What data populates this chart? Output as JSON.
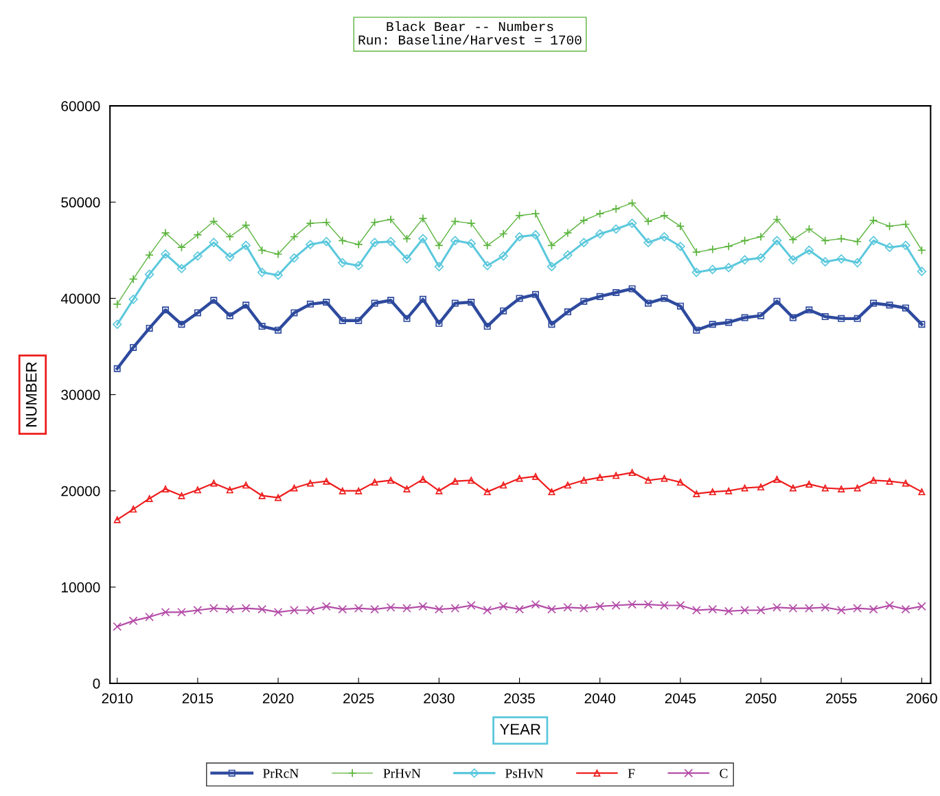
{
  "chart_data": {
    "type": "line",
    "title": "Black Bear -- Numbers",
    "subtitle": "Run: Baseline/Harvest = 1700",
    "xlabel": "YEAR",
    "ylabel": "NUMBER",
    "x": [
      2010,
      2011,
      2012,
      2013,
      2014,
      2015,
      2016,
      2017,
      2018,
      2019,
      2020,
      2021,
      2022,
      2023,
      2024,
      2025,
      2026,
      2027,
      2028,
      2029,
      2030,
      2031,
      2032,
      2033,
      2034,
      2035,
      2036,
      2037,
      2038,
      2039,
      2040,
      2041,
      2042,
      2043,
      2044,
      2045,
      2046,
      2047,
      2048,
      2049,
      2050,
      2051,
      2052,
      2053,
      2054,
      2055,
      2056,
      2057,
      2058,
      2059,
      2060
    ],
    "series": [
      {
        "name": "PrRcN",
        "color": "#2e4a9e",
        "marker": "square",
        "values": [
          32700,
          34900,
          36900,
          38800,
          37300,
          38500,
          39800,
          38200,
          39300,
          37100,
          36700,
          38500,
          39400,
          39600,
          37700,
          37700,
          39500,
          39800,
          37900,
          39900,
          37400,
          39500,
          39600,
          37100,
          38700,
          40000,
          40400,
          37300,
          38600,
          39700,
          40200,
          40600,
          41000,
          39500,
          40000,
          39200,
          36700,
          37300,
          37500,
          38000,
          38200,
          39700,
          38000,
          38800,
          38100,
          37900,
          37900,
          39500,
          39300,
          39000,
          37300
        ]
      },
      {
        "name": "PrHvN",
        "color": "#5ab43c",
        "marker": "plus",
        "values": [
          39400,
          42000,
          44500,
          46800,
          45300,
          46600,
          48000,
          46400,
          47600,
          45000,
          44600,
          46400,
          47800,
          47900,
          46000,
          45600,
          47900,
          48200,
          46200,
          48300,
          45500,
          48000,
          47800,
          45500,
          46700,
          48600,
          48800,
          45500,
          46800,
          48100,
          48800,
          49300,
          49900,
          48000,
          48600,
          47500,
          44800,
          45100,
          45400,
          46000,
          46400,
          48200,
          46100,
          47200,
          46000,
          46200,
          45900,
          48100,
          47500,
          47700,
          45000
        ]
      },
      {
        "name": "PsHvN",
        "color": "#5bc8dc",
        "marker": "diamond",
        "values": [
          37300,
          39900,
          42500,
          44600,
          43100,
          44400,
          45800,
          44300,
          45500,
          42700,
          42400,
          44200,
          45600,
          45900,
          43700,
          43400,
          45800,
          45900,
          44100,
          46200,
          43300,
          46000,
          45700,
          43400,
          44400,
          46400,
          46600,
          43300,
          44500,
          45800,
          46700,
          47200,
          47800,
          45800,
          46400,
          45400,
          42700,
          43000,
          43200,
          44000,
          44200,
          46000,
          44000,
          45000,
          43800,
          44100,
          43700,
          46000,
          45300,
          45500,
          42800
        ]
      },
      {
        "name": "F",
        "color": "#ee1c1c",
        "marker": "triangle",
        "values": [
          17000,
          18100,
          19200,
          20200,
          19500,
          20100,
          20800,
          20100,
          20600,
          19500,
          19300,
          20300,
          20800,
          21000,
          20000,
          20000,
          20900,
          21100,
          20200,
          21200,
          20000,
          21000,
          21100,
          19900,
          20600,
          21300,
          21500,
          19900,
          20600,
          21100,
          21400,
          21600,
          21900,
          21100,
          21300,
          20900,
          19700,
          19900,
          20000,
          20300,
          20400,
          21200,
          20300,
          20700,
          20300,
          20200,
          20300,
          21100,
          21000,
          20800,
          19900
        ]
      },
      {
        "name": "C",
        "color": "#b44ca8",
        "marker": "cross",
        "values": [
          5900,
          6500,
          6900,
          7400,
          7400,
          7600,
          7800,
          7700,
          7800,
          7700,
          7400,
          7600,
          7600,
          8000,
          7700,
          7800,
          7700,
          7900,
          7800,
          8000,
          7700,
          7800,
          8100,
          7600,
          8000,
          7700,
          8200,
          7700,
          7900,
          7800,
          8000,
          8100,
          8200,
          8200,
          8100,
          8100,
          7600,
          7700,
          7500,
          7600,
          7600,
          7900,
          7800,
          7800,
          7900,
          7600,
          7800,
          7700,
          8100,
          7700,
          8000
        ]
      }
    ],
    "xlim": [
      2009.55,
      2060.55
    ],
    "xticks": [
      2010,
      2015,
      2020,
      2025,
      2030,
      2035,
      2040,
      2045,
      2050,
      2055,
      2060
    ],
    "ylim": [
      0,
      60000
    ],
    "yticks": [
      0,
      10000,
      20000,
      30000,
      40000,
      50000,
      60000
    ],
    "grid": false,
    "legend": "bottom"
  }
}
